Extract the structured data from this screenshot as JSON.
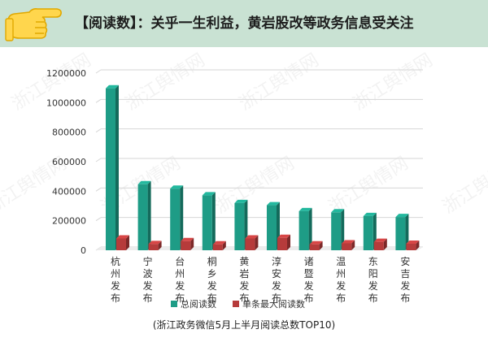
{
  "header": {
    "title": "【阅读数】：关乎一生利益，黄岩股改等政务信息受关注",
    "icon": "pointing-hand-icon"
  },
  "watermark": {
    "text": "浙江舆情网"
  },
  "colors": {
    "header_bg": "#c9e2d3",
    "total_series": "#1e9c86",
    "max_series": "#b63b3b",
    "gridline": "#d6d6d6"
  },
  "chart_data": {
    "type": "bar",
    "title": "",
    "caption": "(浙江政务微信5月上半月阅读总数TOP10)",
    "xlabel": "",
    "ylabel": "",
    "ylim": [
      0,
      1200000
    ],
    "yticks": [
      0,
      200000,
      400000,
      600000,
      800000,
      1000000,
      1200000
    ],
    "ytick_labels": [
      "0",
      "200000",
      "400000",
      "600000",
      "800000",
      "1000000",
      "1200000"
    ],
    "grid": true,
    "legend": "bottom",
    "categories": [
      "杭州发布",
      "宁波发布",
      "台州发布",
      "桐乡发布",
      "黄岩发布",
      "淳安发布",
      "诸暨发布",
      "温州发布",
      "东阳发布",
      "安吉发布"
    ],
    "series": [
      {
        "name": "总阅读数",
        "values": [
          1075000,
          425000,
          395000,
          350000,
          298000,
          283000,
          243000,
          235000,
          210000,
          203000
        ]
      },
      {
        "name": "单条最大阅读数",
        "values": [
          58000,
          20000,
          40000,
          18000,
          58000,
          62000,
          18000,
          25000,
          35000,
          22000
        ]
      }
    ]
  }
}
